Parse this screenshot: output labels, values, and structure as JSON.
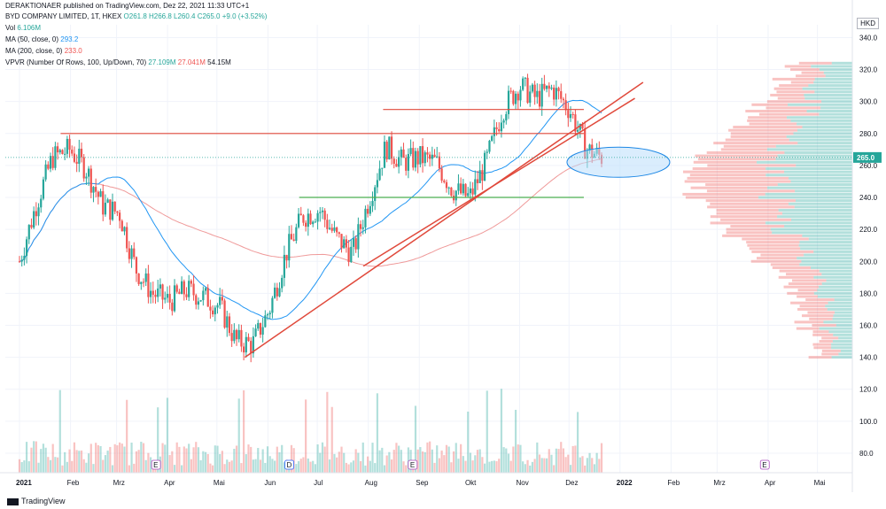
{
  "header": {
    "publisher_line": "DERAKTIONAER published on TradingView.com, Dez 22, 2021 11:33 UTC+1",
    "symbol": "BYD COMPANY LIMITED, 1T, HKEX",
    "ohlc": "O261.8 H266.8 L260.4 C265.0 +9.0 (+3.52%)",
    "volume_label": "Vol",
    "volume_value": "6.106M",
    "ma50_label": "MA (50, close, 0)",
    "ma50_value": "293.2",
    "ma200_label": "MA (200, close, 0)",
    "ma200_value": "233.0",
    "vpvr_label": "VPVR (Number Of Rows, 100, Up/Down, 70)",
    "vpvr_up": "27.109M",
    "vpvr_down": "27.041M",
    "vpvr_total": "54.15M"
  },
  "currency": "HKD",
  "last_price_label": "265.0",
  "footer": {
    "brand": "TradingView"
  },
  "colors": {
    "up": "#26a69a",
    "down": "#ef5350",
    "ma50": "#2196f3",
    "ma200": "#ef9a9a",
    "trend": "#e0493b",
    "support": "#4caf50",
    "ellipse_fill": "#bbdefb",
    "ellipse_stroke": "#1e88e5"
  },
  "chart_data": {
    "type": "candlestick",
    "x_ticks": [
      "2021",
      "Feb",
      "Mrz",
      "Apr",
      "Mai",
      "Jun",
      "Jul",
      "Aug",
      "Sep",
      "Okt",
      "Nov",
      "Dez",
      "2022",
      "Feb",
      "Mrz",
      "Apr",
      "Mai"
    ],
    "y_ticks": [
      80,
      100,
      120,
      140,
      160,
      180,
      200,
      220,
      240,
      260,
      280,
      300,
      320,
      340
    ],
    "ylim": [
      70,
      348
    ],
    "months_series": {
      "2021-01": [
        200,
        235,
        265
      ],
      "2021-02": [
        270,
        258,
        235
      ],
      "2021-03": [
        230,
        195,
        180
      ],
      "2021-04": [
        175,
        182,
        178
      ],
      "2021-05": [
        172,
        150,
        148
      ],
      "2021-06": [
        170,
        205,
        228
      ],
      "2021-07": [
        232,
        215,
        205
      ],
      "2021-08": [
        240,
        272,
        262
      ],
      "2021-09": [
        265,
        262,
        245
      ],
      "2021-10": [
        240,
        262,
        295
      ],
      "2021-11": [
        310,
        302,
        308
      ],
      "2021-12": [
        295,
        270,
        265
      ]
    },
    "annotations": [
      {
        "type": "horizontal",
        "price": 280,
        "from": "2021-01-26",
        "to": "2021-12-10",
        "color": "trend"
      },
      {
        "type": "horizontal",
        "price": 295,
        "from": "2021-08-10",
        "to": "2021-12-10",
        "color": "trend"
      },
      {
        "type": "horizontal",
        "price": 240,
        "from": "2021-06-20",
        "to": "2021-12-10",
        "color": "support"
      },
      {
        "type": "trendline",
        "from": [
          "2021-05-18",
          140
        ],
        "to": [
          "2022-01-15",
          312
        ]
      },
      {
        "type": "trendline",
        "from": [
          "2021-07-29",
          197
        ],
        "to": [
          "2022-01-10",
          302
        ]
      },
      {
        "type": "ellipse",
        "center": [
          "2021-12-31",
          262
        ],
        "label": "zone"
      }
    ]
  },
  "events": [
    {
      "icon": "E",
      "date": "2021-03-25"
    },
    {
      "icon": "D",
      "date": "2021-06-14"
    },
    {
      "icon": "E",
      "date": "2021-08-28"
    },
    {
      "icon": "E",
      "date": "2022-03-30"
    }
  ]
}
